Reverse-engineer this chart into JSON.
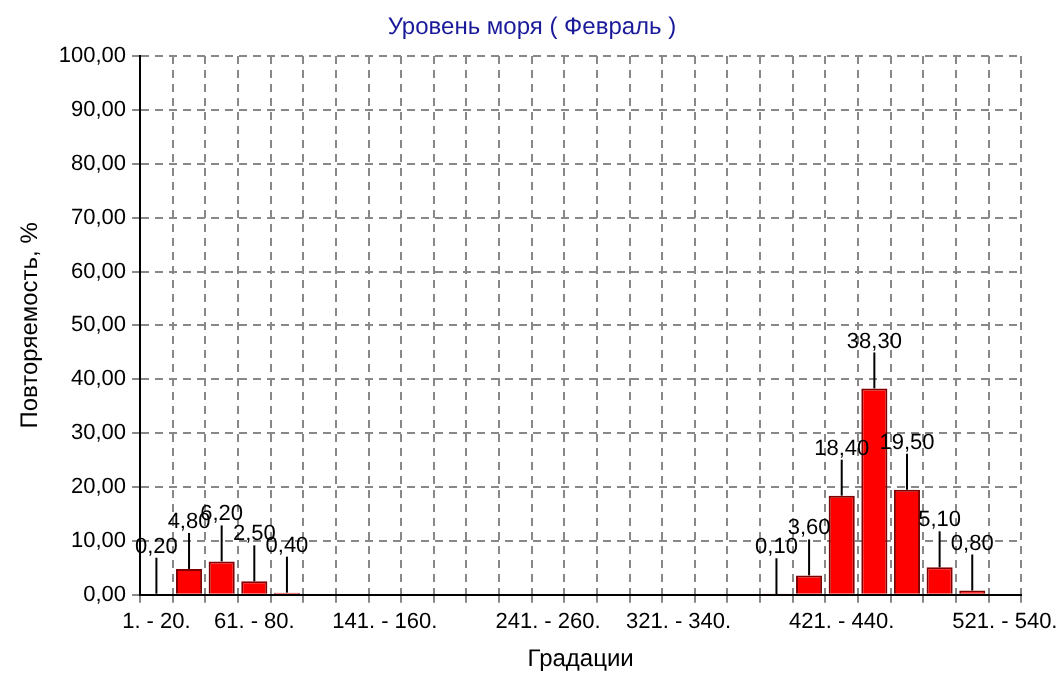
{
  "chart_data": {
    "type": "bar",
    "title": "Уровень моря     ( Февраль )",
    "xlabel": "Градации",
    "ylabel": "Повторяемость, %",
    "categories": [
      "1. - 20.",
      null,
      null,
      "61. - 80.",
      null,
      null,
      null,
      "141. - 160.",
      null,
      null,
      null,
      null,
      "241. - 260.",
      null,
      null,
      null,
      "321. - 340.",
      null,
      null,
      null,
      null,
      "421. - 440.",
      null,
      null,
      null,
      null,
      "521. - 540."
    ],
    "values": [
      0.2,
      4.8,
      6.2,
      2.5,
      0.4,
      0,
      0,
      0,
      0,
      0,
      0,
      0,
      0,
      0,
      0,
      0,
      0,
      0,
      0,
      0.1,
      3.6,
      18.4,
      38.3,
      19.5,
      5.1,
      0.8,
      0
    ],
    "value_labels": [
      "0,20",
      "4,80",
      "6,20",
      "2,50",
      "0,40",
      null,
      null,
      null,
      null,
      null,
      null,
      null,
      null,
      null,
      null,
      null,
      null,
      null,
      null,
      "0,10",
      "3,60",
      "18,40",
      "38,30",
      "19,50",
      "5,10",
      "0,80",
      null
    ],
    "color": "#ff0000",
    "ylim": [
      0,
      100
    ],
    "yticks": [
      {
        "value": 0,
        "label": "0,00"
      },
      {
        "value": 10,
        "label": "10,00"
      },
      {
        "value": 20,
        "label": "20,00"
      },
      {
        "value": 30,
        "label": "30,00"
      },
      {
        "value": 40,
        "label": "40,00"
      },
      {
        "value": 50,
        "label": "50,00"
      },
      {
        "value": 60,
        "label": "60,00"
      },
      {
        "value": 70,
        "label": "70,00"
      },
      {
        "value": 80,
        "label": "80,00"
      },
      {
        "value": 90,
        "label": "90,00"
      },
      {
        "value": 100,
        "label": "100,00"
      }
    ],
    "grid": true
  }
}
